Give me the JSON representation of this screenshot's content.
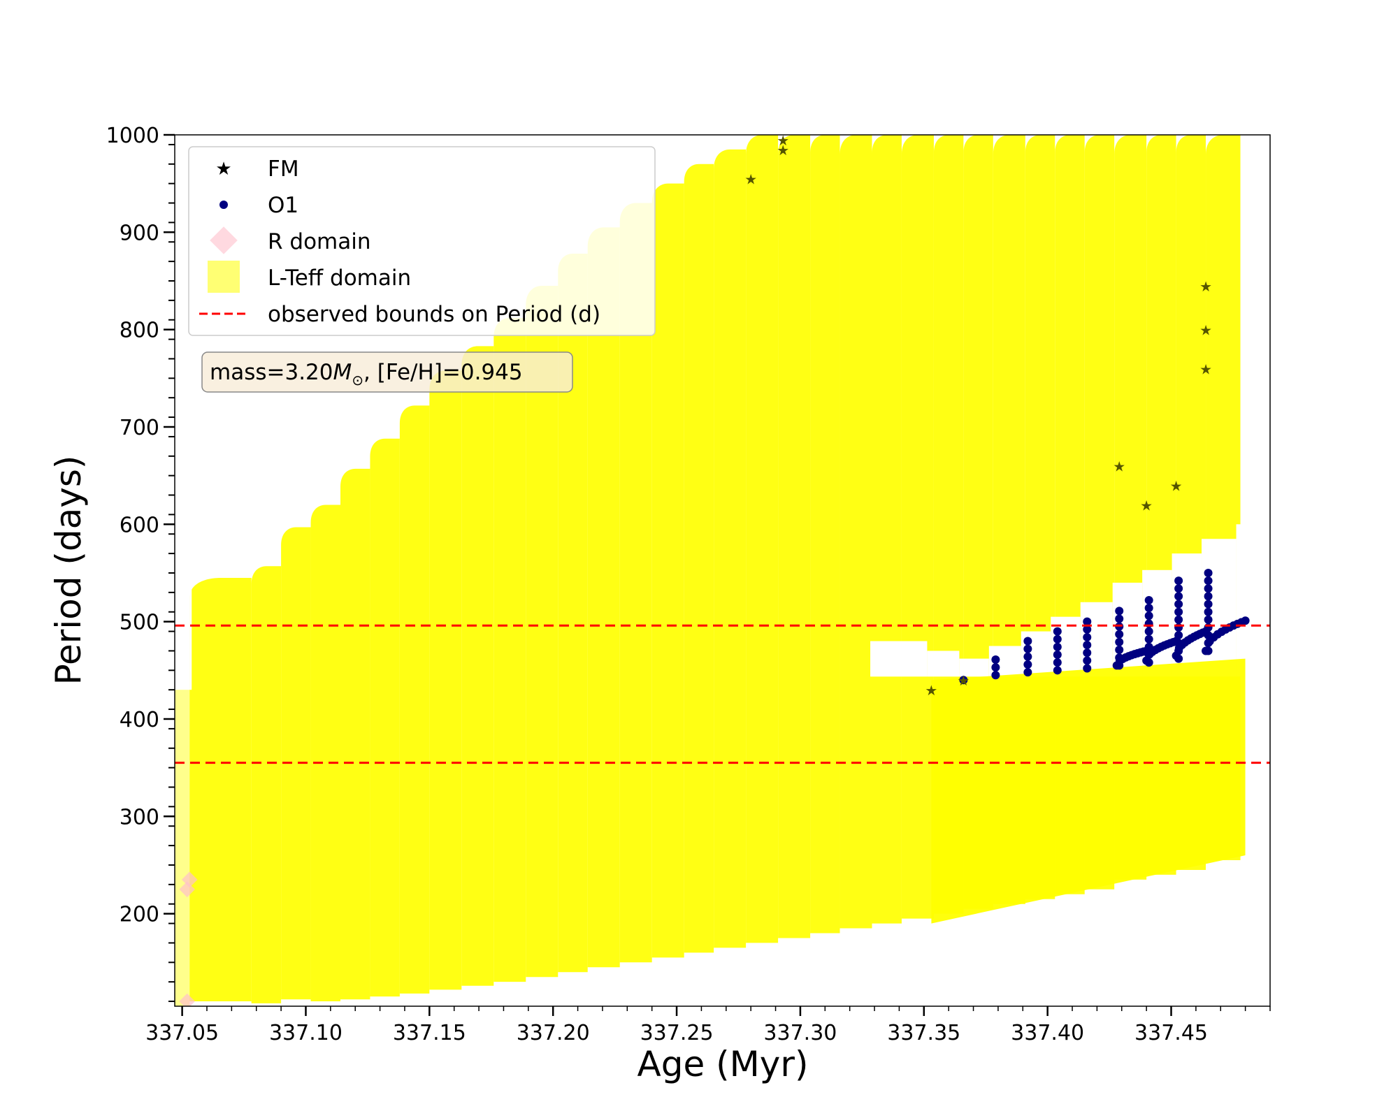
{
  "chart_data": {
    "type": "scatter",
    "xlabel": "Age (Myr)",
    "ylabel": "Period (days)",
    "xlim": [
      337.047,
      337.49
    ],
    "ylim": [
      105,
      1000
    ],
    "xticks": [
      337.05,
      337.1,
      337.15,
      337.2,
      337.25,
      337.3,
      337.35,
      337.4,
      337.45
    ],
    "xtick_labels": [
      "337.05",
      "337.10",
      "337.15",
      "337.20",
      "337.25",
      "337.30",
      "337.35",
      "337.40",
      "337.45"
    ],
    "yticks": [
      200,
      300,
      400,
      500,
      600,
      700,
      800,
      900,
      1000
    ],
    "ytick_labels": [
      "200",
      "300",
      "400",
      "500",
      "600",
      "700",
      "800",
      "900",
      "1000"
    ],
    "annotation": {
      "prefix": "mass=3.20",
      "symbol": "M",
      "sub": "⊙",
      "suffix": ", [Fe/H]=0.945"
    },
    "legend": {
      "location": "upper-left",
      "entries": [
        "FM",
        "O1",
        "R domain",
        "L-Teff domain",
        "observed bounds on Period (d)"
      ]
    },
    "colors": {
      "fm": "#000000",
      "o1": "#000080",
      "r_domain": "#ffc0cb",
      "lteff_domain": "#ffff00",
      "bounds": "#ff0000"
    },
    "observed_bounds": [
      355,
      496
    ],
    "lteff_upper_strips": [
      {
        "x0": 337.053,
        "x1": 337.078,
        "top": 545,
        "bottom": 110
      },
      {
        "x0": 337.078,
        "x1": 337.09,
        "top": 557,
        "bottom": 108
      },
      {
        "x0": 337.09,
        "x1": 337.102,
        "top": 597,
        "bottom": 112
      },
      {
        "x0": 337.102,
        "x1": 337.114,
        "top": 620,
        "bottom": 110
      },
      {
        "x0": 337.114,
        "x1": 337.126,
        "top": 657,
        "bottom": 112
      },
      {
        "x0": 337.126,
        "x1": 337.138,
        "top": 688,
        "bottom": 115
      },
      {
        "x0": 337.138,
        "x1": 337.15,
        "top": 722,
        "bottom": 118
      },
      {
        "x0": 337.15,
        "x1": 337.163,
        "top": 758,
        "bottom": 122
      },
      {
        "x0": 337.163,
        "x1": 337.176,
        "top": 783,
        "bottom": 126
      },
      {
        "x0": 337.176,
        "x1": 337.189,
        "top": 812,
        "bottom": 130
      },
      {
        "x0": 337.189,
        "x1": 337.202,
        "top": 845,
        "bottom": 135
      },
      {
        "x0": 337.202,
        "x1": 337.214,
        "top": 878,
        "bottom": 140
      },
      {
        "x0": 337.214,
        "x1": 337.227,
        "top": 905,
        "bottom": 145
      },
      {
        "x0": 337.227,
        "x1": 337.24,
        "top": 930,
        "bottom": 150
      },
      {
        "x0": 337.24,
        "x1": 337.253,
        "top": 950,
        "bottom": 155
      },
      {
        "x0": 337.253,
        "x1": 337.265,
        "top": 970,
        "bottom": 160
      },
      {
        "x0": 337.265,
        "x1": 337.278,
        "top": 985,
        "bottom": 165
      },
      {
        "x0": 337.278,
        "x1": 337.291,
        "top": 1000,
        "bottom": 170
      },
      {
        "x0": 337.291,
        "x1": 337.304,
        "top": 1000,
        "bottom": 175
      },
      {
        "x0": 337.304,
        "x1": 337.316,
        "top": 1000,
        "bottom": 180
      },
      {
        "x0": 337.316,
        "x1": 337.329,
        "top": 1000,
        "bottom": 185
      },
      {
        "x0": 337.329,
        "x1": 337.341,
        "top": 1000,
        "bottom": 190
      },
      {
        "x0": 337.341,
        "x1": 337.354,
        "top": 1000,
        "bottom": 195
      },
      {
        "x0": 337.354,
        "x1": 337.366,
        "top": 1000,
        "bottom": 200
      },
      {
        "x0": 337.366,
        "x1": 337.378,
        "top": 1000,
        "bottom": 205
      },
      {
        "x0": 337.378,
        "x1": 337.391,
        "top": 1000,
        "bottom": 210
      },
      {
        "x0": 337.391,
        "x1": 337.403,
        "top": 1000,
        "bottom": 215
      },
      {
        "x0": 337.403,
        "x1": 337.415,
        "top": 1000,
        "bottom": 220
      },
      {
        "x0": 337.415,
        "x1": 337.427,
        "top": 1000,
        "bottom": 225
      },
      {
        "x0": 337.427,
        "x1": 337.44,
        "top": 1000,
        "bottom": 235
      },
      {
        "x0": 337.44,
        "x1": 337.452,
        "top": 1000,
        "bottom": 240
      },
      {
        "x0": 337.452,
        "x1": 337.464,
        "top": 1000,
        "bottom": 245
      },
      {
        "x0": 337.464,
        "x1": 337.478,
        "top": 1000,
        "bottom": 255
      }
    ],
    "lteff_upper_bottoms": [
      {
        "x": 337.33,
        "y": 480
      },
      {
        "x": 337.353,
        "y": 470
      },
      {
        "x": 337.366,
        "y": 462
      },
      {
        "x": 337.378,
        "y": 475
      },
      {
        "x": 337.391,
        "y": 490
      },
      {
        "x": 337.403,
        "y": 505
      },
      {
        "x": 337.415,
        "y": 520
      },
      {
        "x": 337.428,
        "y": 540
      },
      {
        "x": 337.44,
        "y": 553
      },
      {
        "x": 337.452,
        "y": 570
      },
      {
        "x": 337.464,
        "y": 585
      },
      {
        "x": 337.478,
        "y": 600
      }
    ],
    "lteff_lower_band": {
      "x0": 337.353,
      "x1": 337.48,
      "top_left": 440,
      "top_right": 462
    },
    "fm_points": [
      {
        "x": 337.28,
        "y": 955
      },
      {
        "x": 337.293,
        "y": 985
      },
      {
        "x": 337.293,
        "y": 995
      },
      {
        "x": 337.353,
        "y": 430
      },
      {
        "x": 337.366,
        "y": 440
      },
      {
        "x": 337.429,
        "y": 660
      },
      {
        "x": 337.44,
        "y": 620
      },
      {
        "x": 337.452,
        "y": 640
      },
      {
        "x": 337.464,
        "y": 760
      },
      {
        "x": 337.464,
        "y": 800
      },
      {
        "x": 337.464,
        "y": 845
      }
    ],
    "o1_columns": [
      {
        "x": 337.366,
        "ymin": 440,
        "ymax": 445
      },
      {
        "x": 337.379,
        "ymin": 445,
        "ymax": 465
      },
      {
        "x": 337.392,
        "ymin": 448,
        "ymax": 480
      },
      {
        "x": 337.404,
        "ymin": 450,
        "ymax": 495
      },
      {
        "x": 337.416,
        "ymin": 452,
        "ymax": 503
      },
      {
        "x": 337.429,
        "ymin": 455,
        "ymax": 515
      },
      {
        "x": 337.441,
        "ymin": 458,
        "ymax": 528
      },
      {
        "x": 337.453,
        "ymin": 462,
        "ymax": 542
      },
      {
        "x": 337.465,
        "ymin": 470,
        "ymax": 557
      }
    ],
    "o1_curves": [
      {
        "x0": 337.428,
        "y0": 455,
        "x1": 337.44,
        "y1": 470
      },
      {
        "x0": 337.44,
        "y0": 460,
        "x1": 337.452,
        "y1": 480
      },
      {
        "x0": 337.452,
        "y0": 465,
        "x1": 337.464,
        "y1": 490
      },
      {
        "x0": 337.464,
        "y0": 470,
        "x1": 337.48,
        "y1": 501
      }
    ],
    "r_points": [
      {
        "x": 337.052,
        "y": 225
      },
      {
        "x": 337.053,
        "y": 235
      },
      {
        "x": 337.052,
        "y": 110
      }
    ]
  }
}
